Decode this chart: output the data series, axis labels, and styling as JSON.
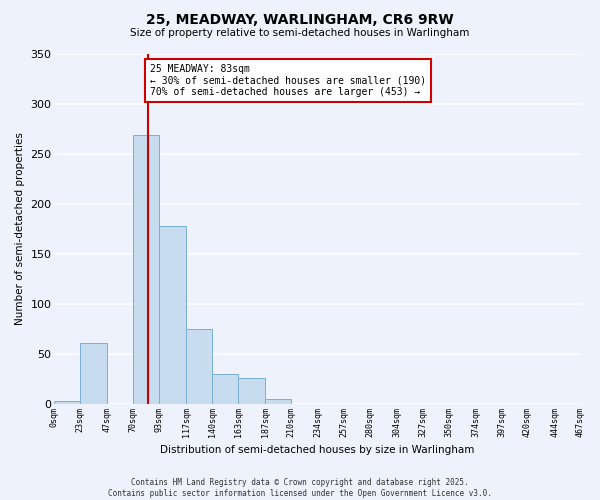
{
  "title": "25, MEADWAY, WARLINGHAM, CR6 9RW",
  "subtitle": "Size of property relative to semi-detached houses in Warlingham",
  "xlabel": "Distribution of semi-detached houses by size in Warlingham",
  "ylabel": "Number of semi-detached properties",
  "bin_edges": [
    0,
    23,
    47,
    70,
    93,
    117,
    140,
    163,
    187,
    210,
    234,
    257,
    280,
    304,
    327,
    350,
    374,
    397,
    420,
    444,
    467
  ],
  "bar_heights": [
    3,
    61,
    0,
    269,
    178,
    75,
    30,
    26,
    5,
    0,
    0,
    0,
    0,
    0,
    0,
    0,
    0,
    0,
    0,
    0
  ],
  "bar_color": "#c8dcf0",
  "bar_edge_color": "#7bafd4",
  "property_size": 83,
  "property_line_color": "#cc0000",
  "annotation_text": "25 MEADWAY: 83sqm\n← 30% of semi-detached houses are smaller (190)\n70% of semi-detached houses are larger (453) →",
  "annotation_box_color": "#ffffff",
  "annotation_box_edge_color": "#cc0000",
  "ylim": [
    0,
    350
  ],
  "xlim": [
    0,
    467
  ],
  "bg_color": "#eef2fc",
  "grid_color": "#ffffff",
  "footnote": "Contains HM Land Registry data © Crown copyright and database right 2025.\nContains public sector information licensed under the Open Government Licence v3.0.",
  "tick_labels": [
    "0sqm",
    "23sqm",
    "47sqm",
    "70sqm",
    "93sqm",
    "117sqm",
    "140sqm",
    "163sqm",
    "187sqm",
    "210sqm",
    "234sqm",
    "257sqm",
    "280sqm",
    "304sqm",
    "327sqm",
    "350sqm",
    "374sqm",
    "397sqm",
    "420sqm",
    "444sqm",
    "467sqm"
  ],
  "yticks": [
    0,
    50,
    100,
    150,
    200,
    250,
    300,
    350
  ]
}
